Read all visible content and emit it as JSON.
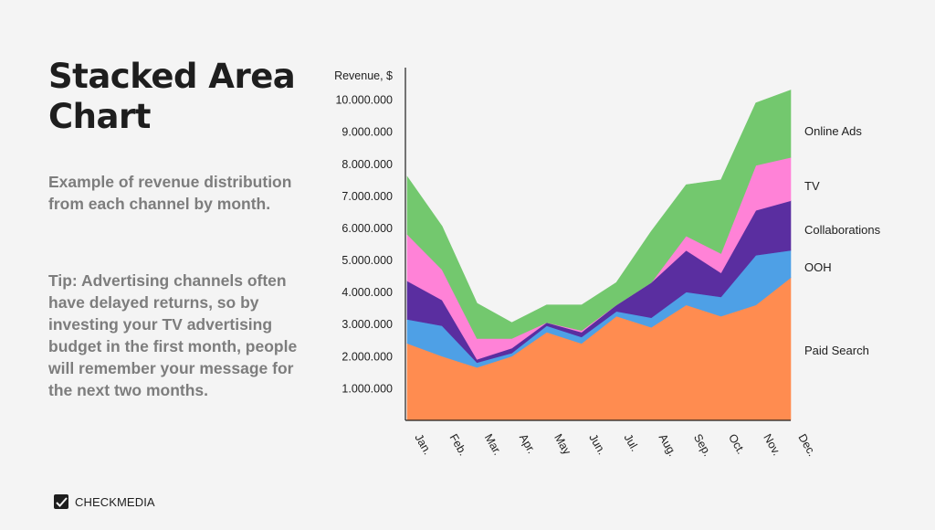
{
  "page": {
    "title": "Stacked Area Chart",
    "description": "Example of revenue distribution from each channel by month.",
    "tip": "Tip: Advertising channels often have delayed returns, so by investing your TV advertising budget in the first month, people will remember your message for the next two months.",
    "brand": "CHECKMEDIA",
    "brand_icon": "checkmark-logo-icon"
  },
  "chart_data": {
    "type": "area",
    "stacked": true,
    "title": "",
    "xlabel": "",
    "ylabel": "Revenue, $",
    "ylim": [
      0,
      11000000
    ],
    "yticks": [
      1000000,
      2000000,
      3000000,
      4000000,
      5000000,
      6000000,
      7000000,
      8000000,
      9000000,
      10000000
    ],
    "ytick_labels": [
      "1.000.000",
      "2.000.000",
      "3.000.000",
      "4.000.000",
      "5.000.000",
      "6.000.000",
      "7.000.000",
      "8.000.000",
      "9.000.000",
      "10.000.000"
    ],
    "categories": [
      "Jan.",
      "Feb.",
      "Mar.",
      "Apr.",
      "May",
      "Jun.",
      "Jul.",
      "Aug.",
      "Sep.",
      "Oct.",
      "Nov.",
      "Dec."
    ],
    "legend_placement": "right, at end of each series",
    "grid": false,
    "series": [
      {
        "name": "Paid Search",
        "color": "#ff8c50",
        "values": [
          2400000,
          2000000,
          1650000,
          2000000,
          2750000,
          2400000,
          3250000,
          2900000,
          3600000,
          3250000,
          3600000,
          4450000
        ]
      },
      {
        "name": "OOH",
        "color": "#4ea0e6",
        "values": [
          750000,
          950000,
          150000,
          100000,
          200000,
          200000,
          150000,
          300000,
          400000,
          600000,
          1550000,
          850000
        ]
      },
      {
        "name": "Collaborations",
        "color": "#5a2ea0",
        "values": [
          1200000,
          800000,
          100000,
          150000,
          100000,
          150000,
          200000,
          1100000,
          1300000,
          750000,
          1400000,
          1550000
        ]
      },
      {
        "name": "TV",
        "color": "#ff82d7",
        "values": [
          1450000,
          950000,
          650000,
          300000,
          0,
          50000,
          0,
          0,
          450000,
          600000,
          1400000,
          1350000
        ]
      },
      {
        "name": "Online Ads",
        "color": "#73c86e",
        "values": [
          1800000,
          1350000,
          1100000,
          500000,
          550000,
          800000,
          700000,
          1600000,
          1600000,
          2300000,
          1950000,
          2100000
        ]
      }
    ]
  }
}
